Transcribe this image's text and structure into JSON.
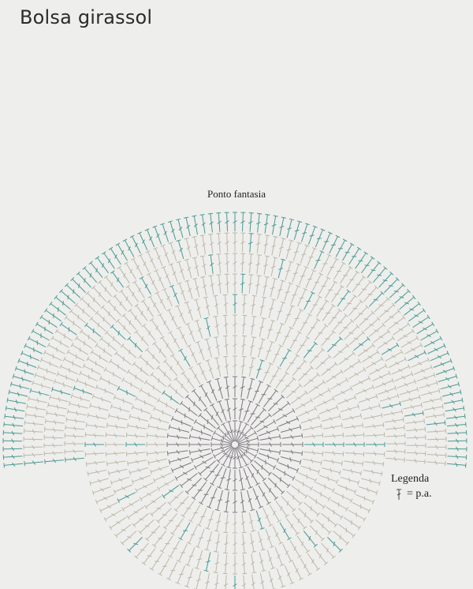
{
  "page": {
    "title": "Bolsa girassol"
  },
  "diagram": {
    "label": "Ponto fantasia",
    "stitch": "p.a.",
    "colors": {
      "center": "#7d7880",
      "inner": "#bcb8a8",
      "accent": "#4a9a92",
      "background": "#eeeeec"
    }
  },
  "legend": {
    "title": "Legenda",
    "entry_text": "= p.a.",
    "symbol_icon": "double-crochet-symbol-icon"
  }
}
